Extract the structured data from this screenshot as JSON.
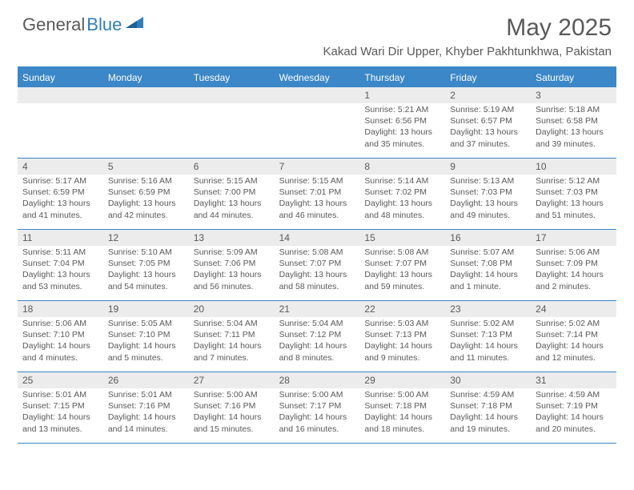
{
  "brand": {
    "part1": "General",
    "part2": "Blue",
    "text_color": "#5a5a5a",
    "accent_color": "#2f7fbf"
  },
  "title": "May 2025",
  "subtitle": "Kakad Wari Dir Upper, Khyber Pakhtunkhwa, Pakistan",
  "colors": {
    "header_bar": "#3b87c8",
    "cell_header_bg": "#ececec",
    "text": "#595959",
    "background": "#ffffff"
  },
  "weekdays": [
    "Sunday",
    "Monday",
    "Tuesday",
    "Wednesday",
    "Thursday",
    "Friday",
    "Saturday"
  ],
  "weeks": [
    [
      {
        "day": "",
        "sunrise": "",
        "sunset": "",
        "daylight1": "",
        "daylight2": ""
      },
      {
        "day": "",
        "sunrise": "",
        "sunset": "",
        "daylight1": "",
        "daylight2": ""
      },
      {
        "day": "",
        "sunrise": "",
        "sunset": "",
        "daylight1": "",
        "daylight2": ""
      },
      {
        "day": "",
        "sunrise": "",
        "sunset": "",
        "daylight1": "",
        "daylight2": ""
      },
      {
        "day": "1",
        "sunrise": "Sunrise: 5:21 AM",
        "sunset": "Sunset: 6:56 PM",
        "daylight1": "Daylight: 13 hours",
        "daylight2": "and 35 minutes."
      },
      {
        "day": "2",
        "sunrise": "Sunrise: 5:19 AM",
        "sunset": "Sunset: 6:57 PM",
        "daylight1": "Daylight: 13 hours",
        "daylight2": "and 37 minutes."
      },
      {
        "day": "3",
        "sunrise": "Sunrise: 5:18 AM",
        "sunset": "Sunset: 6:58 PM",
        "daylight1": "Daylight: 13 hours",
        "daylight2": "and 39 minutes."
      }
    ],
    [
      {
        "day": "4",
        "sunrise": "Sunrise: 5:17 AM",
        "sunset": "Sunset: 6:59 PM",
        "daylight1": "Daylight: 13 hours",
        "daylight2": "and 41 minutes."
      },
      {
        "day": "5",
        "sunrise": "Sunrise: 5:16 AM",
        "sunset": "Sunset: 6:59 PM",
        "daylight1": "Daylight: 13 hours",
        "daylight2": "and 42 minutes."
      },
      {
        "day": "6",
        "sunrise": "Sunrise: 5:15 AM",
        "sunset": "Sunset: 7:00 PM",
        "daylight1": "Daylight: 13 hours",
        "daylight2": "and 44 minutes."
      },
      {
        "day": "7",
        "sunrise": "Sunrise: 5:15 AM",
        "sunset": "Sunset: 7:01 PM",
        "daylight1": "Daylight: 13 hours",
        "daylight2": "and 46 minutes."
      },
      {
        "day": "8",
        "sunrise": "Sunrise: 5:14 AM",
        "sunset": "Sunset: 7:02 PM",
        "daylight1": "Daylight: 13 hours",
        "daylight2": "and 48 minutes."
      },
      {
        "day": "9",
        "sunrise": "Sunrise: 5:13 AM",
        "sunset": "Sunset: 7:03 PM",
        "daylight1": "Daylight: 13 hours",
        "daylight2": "and 49 minutes."
      },
      {
        "day": "10",
        "sunrise": "Sunrise: 5:12 AM",
        "sunset": "Sunset: 7:03 PM",
        "daylight1": "Daylight: 13 hours",
        "daylight2": "and 51 minutes."
      }
    ],
    [
      {
        "day": "11",
        "sunrise": "Sunrise: 5:11 AM",
        "sunset": "Sunset: 7:04 PM",
        "daylight1": "Daylight: 13 hours",
        "daylight2": "and 53 minutes."
      },
      {
        "day": "12",
        "sunrise": "Sunrise: 5:10 AM",
        "sunset": "Sunset: 7:05 PM",
        "daylight1": "Daylight: 13 hours",
        "daylight2": "and 54 minutes."
      },
      {
        "day": "13",
        "sunrise": "Sunrise: 5:09 AM",
        "sunset": "Sunset: 7:06 PM",
        "daylight1": "Daylight: 13 hours",
        "daylight2": "and 56 minutes."
      },
      {
        "day": "14",
        "sunrise": "Sunrise: 5:08 AM",
        "sunset": "Sunset: 7:07 PM",
        "daylight1": "Daylight: 13 hours",
        "daylight2": "and 58 minutes."
      },
      {
        "day": "15",
        "sunrise": "Sunrise: 5:08 AM",
        "sunset": "Sunset: 7:07 PM",
        "daylight1": "Daylight: 13 hours",
        "daylight2": "and 59 minutes."
      },
      {
        "day": "16",
        "sunrise": "Sunrise: 5:07 AM",
        "sunset": "Sunset: 7:08 PM",
        "daylight1": "Daylight: 14 hours",
        "daylight2": "and 1 minute."
      },
      {
        "day": "17",
        "sunrise": "Sunrise: 5:06 AM",
        "sunset": "Sunset: 7:09 PM",
        "daylight1": "Daylight: 14 hours",
        "daylight2": "and 2 minutes."
      }
    ],
    [
      {
        "day": "18",
        "sunrise": "Sunrise: 5:06 AM",
        "sunset": "Sunset: 7:10 PM",
        "daylight1": "Daylight: 14 hours",
        "daylight2": "and 4 minutes."
      },
      {
        "day": "19",
        "sunrise": "Sunrise: 5:05 AM",
        "sunset": "Sunset: 7:10 PM",
        "daylight1": "Daylight: 14 hours",
        "daylight2": "and 5 minutes."
      },
      {
        "day": "20",
        "sunrise": "Sunrise: 5:04 AM",
        "sunset": "Sunset: 7:11 PM",
        "daylight1": "Daylight: 14 hours",
        "daylight2": "and 7 minutes."
      },
      {
        "day": "21",
        "sunrise": "Sunrise: 5:04 AM",
        "sunset": "Sunset: 7:12 PM",
        "daylight1": "Daylight: 14 hours",
        "daylight2": "and 8 minutes."
      },
      {
        "day": "22",
        "sunrise": "Sunrise: 5:03 AM",
        "sunset": "Sunset: 7:13 PM",
        "daylight1": "Daylight: 14 hours",
        "daylight2": "and 9 minutes."
      },
      {
        "day": "23",
        "sunrise": "Sunrise: 5:02 AM",
        "sunset": "Sunset: 7:13 PM",
        "daylight1": "Daylight: 14 hours",
        "daylight2": "and 11 minutes."
      },
      {
        "day": "24",
        "sunrise": "Sunrise: 5:02 AM",
        "sunset": "Sunset: 7:14 PM",
        "daylight1": "Daylight: 14 hours",
        "daylight2": "and 12 minutes."
      }
    ],
    [
      {
        "day": "25",
        "sunrise": "Sunrise: 5:01 AM",
        "sunset": "Sunset: 7:15 PM",
        "daylight1": "Daylight: 14 hours",
        "daylight2": "and 13 minutes."
      },
      {
        "day": "26",
        "sunrise": "Sunrise: 5:01 AM",
        "sunset": "Sunset: 7:16 PM",
        "daylight1": "Daylight: 14 hours",
        "daylight2": "and 14 minutes."
      },
      {
        "day": "27",
        "sunrise": "Sunrise: 5:00 AM",
        "sunset": "Sunset: 7:16 PM",
        "daylight1": "Daylight: 14 hours",
        "daylight2": "and 15 minutes."
      },
      {
        "day": "28",
        "sunrise": "Sunrise: 5:00 AM",
        "sunset": "Sunset: 7:17 PM",
        "daylight1": "Daylight: 14 hours",
        "daylight2": "and 16 minutes."
      },
      {
        "day": "29",
        "sunrise": "Sunrise: 5:00 AM",
        "sunset": "Sunset: 7:18 PM",
        "daylight1": "Daylight: 14 hours",
        "daylight2": "and 18 minutes."
      },
      {
        "day": "30",
        "sunrise": "Sunrise: 4:59 AM",
        "sunset": "Sunset: 7:18 PM",
        "daylight1": "Daylight: 14 hours",
        "daylight2": "and 19 minutes."
      },
      {
        "day": "31",
        "sunrise": "Sunrise: 4:59 AM",
        "sunset": "Sunset: 7:19 PM",
        "daylight1": "Daylight: 14 hours",
        "daylight2": "and 20 minutes."
      }
    ]
  ]
}
